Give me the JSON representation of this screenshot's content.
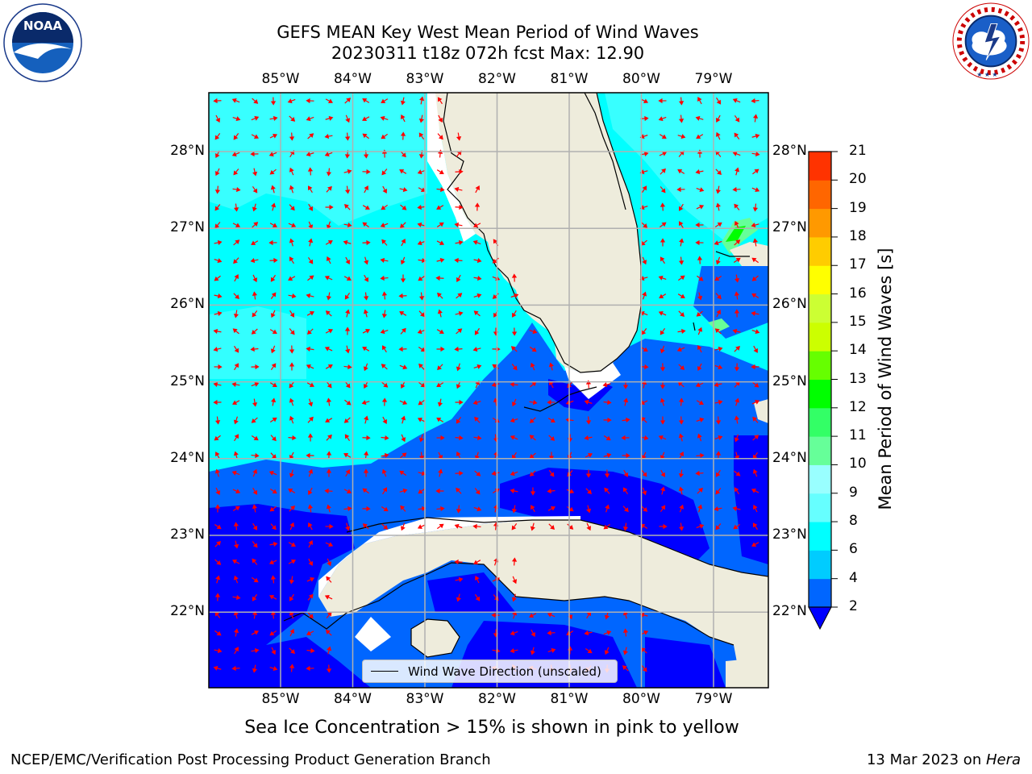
{
  "title": {
    "line1": "GEFS MEAN Key West Mean Period of Wind Waves",
    "line2": "20230311 t18z 072h fcst   Max: 12.90"
  },
  "logos": {
    "left": "NOAA",
    "left_ring_text": "NATIONAL OCEANIC AND ATMOSPHERIC ADMINISTRATION · U.S. DEPARTMENT OF COMMERCE",
    "right_ring_text": "NATIONAL WEATHER SERVICE"
  },
  "map": {
    "lon_labels": [
      "85°W",
      "84°W",
      "83°W",
      "82°W",
      "81°W",
      "80°W",
      "79°W"
    ],
    "lat_labels": [
      "28°N",
      "27°N",
      "26°N",
      "25°N",
      "24°N",
      "23°N",
      "22°N"
    ],
    "lon_values": [
      -85,
      -84,
      -83,
      -82,
      -81,
      -80,
      -79
    ],
    "lat_values": [
      28,
      27,
      26,
      25,
      24,
      23,
      22
    ],
    "legend_label": "Wind Wave Direction (unscaled)",
    "arrow_color": "#ff0000",
    "land_color": "#eeecdc",
    "grid_color": "#b0b0b0"
  },
  "colorbar": {
    "label": "Mean Period of Wind Waves [s]",
    "ticks": [
      "2",
      "4",
      "6",
      "8",
      "9",
      "10",
      "11",
      "12",
      "13",
      "14",
      "15",
      "16",
      "17",
      "18",
      "19",
      "20",
      "21"
    ],
    "levels": [
      2,
      4,
      6,
      8,
      9,
      10,
      11,
      12,
      13,
      14,
      15,
      16,
      17,
      18,
      19,
      20,
      21
    ],
    "colors": [
      "#0066ff",
      "#00ccff",
      "#00ffff",
      "#66ffff",
      "#99ffff",
      "#66ff99",
      "#33ff66",
      "#00ff00",
      "#66ff00",
      "#ccff00",
      "#ccff33",
      "#ffff00",
      "#ffcc00",
      "#ff9900",
      "#ff6600",
      "#ff3300",
      "#ff0000"
    ],
    "under_color": "#0000ff"
  },
  "note": "Sea Ice Concentration > 15% is shown in pink to yellow",
  "footer": {
    "left": "NCEP/EMC/Verification Post Processing Product Generation Branch",
    "date": "13 Mar 2023 on ",
    "machine": "Hera"
  }
}
